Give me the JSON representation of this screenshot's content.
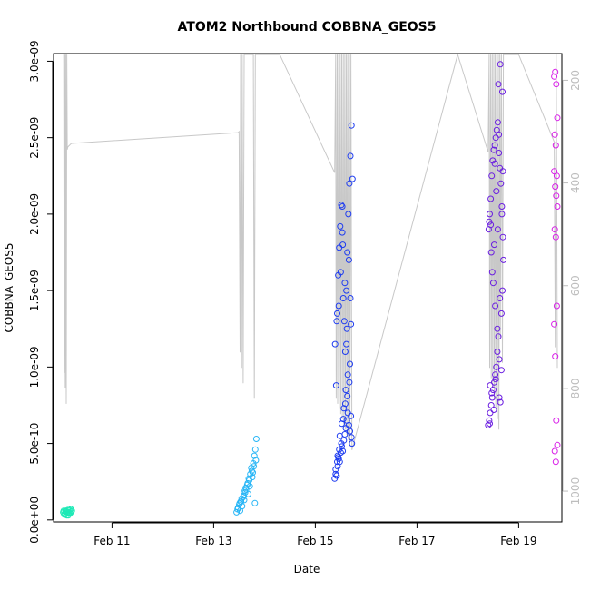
{
  "chart_data": {
    "type": "scatter",
    "title": "ATOM2 Northbound COBBNA_GEOS5",
    "xlabel": "Date",
    "ylabel": "COBBNA_GEOS5",
    "x_ticks": [
      "Feb 11",
      "Feb 13",
      "Feb 15",
      "Feb 17",
      "Feb 19"
    ],
    "y_ticks": [
      "0.0e+00",
      "5.0e-10",
      "1.0e-09",
      "1.5e-09",
      "2.0e-09",
      "2.5e-09",
      "3.0e-09"
    ],
    "y2_ticks": [
      "200",
      "400",
      "600",
      "800",
      "1000"
    ],
    "xlim": [
      9.85,
      19.85
    ],
    "ylim": [
      -1.3e-11,
      3.05e-09
    ],
    "y2lim": [
      1060,
      148
    ],
    "grid": false,
    "pressure_line_color": "#c8c8c8",
    "point_style": "open-circle",
    "series": [
      {
        "color": "#1de9b6",
        "x": [
          10.05,
          10.07,
          10.09,
          10.11,
          10.13,
          10.15,
          10.17,
          10.19,
          10.06,
          10.08,
          10.1,
          10.12,
          10.14,
          10.16,
          10.18,
          10.2,
          10.04,
          10.21
        ],
        "y": [
          6e-11,
          4e-11,
          5.5e-11,
          3e-11,
          6.5e-11,
          4.5e-11,
          5e-11,
          7e-11,
          3.5e-11,
          6e-11,
          4e-11,
          5e-11,
          3e-11,
          6.5e-11,
          4.5e-11,
          5.5e-11,
          5e-11,
          6e-11
        ]
      },
      {
        "color": "#29b6f6",
        "x": [
          13.45,
          13.48,
          13.5,
          13.52,
          13.54,
          13.56,
          13.58,
          13.6,
          13.62,
          13.64,
          13.66,
          13.68,
          13.7,
          13.72,
          13.74,
          13.76,
          13.78,
          13.8,
          13.82,
          13.84,
          13.47,
          13.51,
          13.55,
          13.59,
          13.63,
          13.67,
          13.71,
          13.75,
          13.79,
          13.83,
          13.53,
          13.61,
          13.69,
          13.77,
          13.81
        ],
        "y": [
          5e-11,
          8e-11,
          1e-10,
          6e-11,
          1.2e-10,
          9e-11,
          1.5e-10,
          1.3e-10,
          1.8e-10,
          2e-10,
          2.3e-10,
          1.7e-10,
          2.6e-10,
          3e-10,
          3.4e-10,
          2.8e-10,
          3.7e-10,
          4.2e-10,
          4.6e-10,
          5.3e-10,
          7e-11,
          1.1e-10,
          1.4e-10,
          1.6e-10,
          2.1e-10,
          2.4e-10,
          2.2e-10,
          3.2e-10,
          3.5e-10,
          3.9e-10,
          1.2e-10,
          1.9e-10,
          2.7e-10,
          3.1e-10,
          1.1e-10
        ]
      },
      {
        "color": "#1e3cf0",
        "x": [
          15.38,
          15.4,
          15.42,
          15.44,
          15.46,
          15.48,
          15.5,
          15.52,
          15.54,
          15.56,
          15.58,
          15.6,
          15.62,
          15.64,
          15.66,
          15.68,
          15.7,
          15.72,
          15.39,
          15.41,
          15.43,
          15.45,
          15.47,
          15.49,
          15.51,
          15.53,
          15.55,
          15.57,
          15.59,
          15.61,
          15.63,
          15.65,
          15.67,
          15.69,
          15.71,
          15.73,
          15.4,
          15.44,
          15.48,
          15.52,
          15.56,
          15.6,
          15.64,
          15.68,
          15.42,
          15.46,
          15.5,
          15.54,
          15.58,
          15.62,
          15.66,
          15.7,
          15.43,
          15.47,
          15.51,
          15.55,
          15.59,
          15.63,
          15.67,
          15.71,
          15.45,
          15.53,
          15.61,
          15.69
        ],
        "y": [
          2.7e-10,
          3e-10,
          2.9e-10,
          3.5e-10,
          4e-10,
          3.8e-10,
          4.4e-10,
          4.8e-10,
          4.5e-10,
          5.2e-10,
          5.6e-10,
          6e-10,
          6.5e-10,
          7e-10,
          6.2e-10,
          5.8e-10,
          6.8e-10,
          5e-10,
          1.15e-09,
          8.8e-10,
          1.35e-09,
          1.6e-09,
          1.78e-09,
          1.92e-09,
          2.06e-09,
          1.88e-09,
          1.45e-09,
          1.3e-09,
          1.1e-09,
          1.5e-09,
          1.75e-09,
          2e-09,
          2.2e-09,
          2.38e-09,
          2.58e-09,
          2.23e-09,
          3.3e-10,
          4.2e-10,
          5.5e-10,
          6.3e-10,
          7.3e-10,
          8.5e-10,
          9.5e-10,
          1.02e-09,
          1.3e-09,
          1.4e-09,
          1.62e-09,
          1.8e-09,
          1.55e-09,
          1.25e-09,
          1.7e-09,
          1.28e-09,
          3.8e-10,
          4.6e-10,
          5e-10,
          6.6e-10,
          7.6e-10,
          8.1e-10,
          9e-10,
          5.4e-10,
          4.1e-10,
          2.05e-09,
          1.15e-09,
          1.45e-09
        ]
      },
      {
        "color": "#6a1de0",
        "x": [
          18.4,
          18.42,
          18.44,
          18.46,
          18.48,
          18.5,
          18.52,
          18.54,
          18.56,
          18.58,
          18.6,
          18.62,
          18.64,
          18.66,
          18.68,
          18.7,
          18.41,
          18.43,
          18.45,
          18.47,
          18.49,
          18.51,
          18.53,
          18.55,
          18.57,
          18.59,
          18.61,
          18.63,
          18.65,
          18.67,
          18.69,
          18.42,
          18.46,
          18.5,
          18.54,
          18.58,
          18.62,
          18.66,
          18.44,
          18.48,
          18.52,
          18.56,
          18.6,
          18.64,
          18.68,
          18.45,
          18.53,
          18.61,
          18.69,
          18.43,
          18.51,
          18.59,
          18.67,
          18.47,
          18.55,
          18.63
        ],
        "y": [
          6.2e-10,
          6.5e-10,
          7e-10,
          7.5e-10,
          8e-10,
          8.5e-10,
          9e-10,
          9.5e-10,
          1e-09,
          1.1e-09,
          1.2e-09,
          8e-10,
          7.7e-10,
          1.35e-09,
          1.5e-09,
          1.7e-09,
          1.9e-09,
          2e-09,
          2.1e-09,
          2.25e-09,
          2.35e-09,
          2.42e-09,
          2.45e-09,
          2.5e-09,
          2.55e-09,
          2.6e-09,
          2.4e-09,
          2.3e-09,
          2.2e-09,
          2e-09,
          1.85e-09,
          1.95e-09,
          1.75e-09,
          1.55e-09,
          1.4e-09,
          1.25e-09,
          1.05e-09,
          9.8e-10,
          8.8e-10,
          1.62e-09,
          1.8e-09,
          2.15e-09,
          2.85e-09,
          2.98e-09,
          2.8e-09,
          1.93e-09,
          2.33e-09,
          2.52e-09,
          2.28e-09,
          6.3e-10,
          7.2e-10,
          1.9e-09,
          2.05e-09,
          8.3e-10,
          9.2e-10,
          1.45e-09
        ]
      },
      {
        "color": "#d81ee8",
        "x": [
          19.7,
          19.72,
          19.74,
          19.76,
          19.71,
          19.73,
          19.75,
          19.7,
          19.72,
          19.74,
          19.76,
          19.71,
          19.73,
          19.75,
          19.7,
          19.72,
          19.74,
          19.76,
          19.71,
          19.73
        ],
        "y": [
          2.9e-09,
          2.93e-09,
          2.85e-09,
          2.63e-09,
          2.52e-09,
          2.45e-09,
          2.25e-09,
          2.28e-09,
          2.18e-09,
          2.12e-09,
          2.05e-09,
          1.9e-09,
          1.85e-09,
          1.4e-09,
          1.28e-09,
          1.07e-09,
          6.5e-10,
          4.9e-10,
          4.5e-10,
          3.8e-10
        ]
      }
    ],
    "pressure_trace": {
      "x": [
        10.05,
        10.06,
        10.07,
        10.08,
        10.09,
        10.1,
        10.11,
        10.12,
        10.13,
        10.14,
        10.15,
        10.16,
        10.17,
        10.18,
        10.2,
        13.48,
        13.5,
        13.52,
        13.53,
        13.55,
        13.56,
        13.58,
        13.6,
        13.62,
        13.64,
        13.66,
        13.68,
        13.7,
        13.72,
        13.74,
        13.76,
        13.78,
        13.8,
        13.82,
        14.3,
        15.38,
        15.4,
        15.41,
        15.43,
        15.44,
        15.46,
        15.47,
        15.49,
        15.5,
        15.52,
        15.53,
        15.55,
        15.56,
        15.58,
        15.59,
        15.61,
        15.62,
        15.64,
        15.65,
        15.67,
        15.68,
        15.7,
        15.72,
        17.8,
        18.4,
        18.42,
        18.43,
        18.45,
        18.46,
        18.48,
        18.49,
        18.51,
        18.52,
        18.54,
        18.55,
        18.57,
        18.58,
        18.6,
        18.61,
        18.63,
        18.64,
        18.66,
        18.68,
        18.7,
        19.0,
        19.7,
        19.72,
        19.74,
        19.76
      ],
      "p": [
        150,
        770,
        150,
        800,
        150,
        830,
        150,
        335,
        330,
        329,
        328,
        327,
        326,
        325,
        323,
        302,
        300,
        730,
        150,
        760,
        150,
        790,
        150,
        150,
        150,
        150,
        150,
        150,
        150,
        150,
        150,
        150,
        820,
        150,
        150,
        380,
        150,
        820,
        150,
        830,
        150,
        840,
        150,
        850,
        150,
        860,
        150,
        870,
        150,
        880,
        150,
        890,
        150,
        900,
        150,
        910,
        150,
        920,
        150,
        340,
        150,
        760,
        150,
        780,
        150,
        800,
        150,
        820,
        150,
        840,
        150,
        860,
        150,
        880,
        150,
        700,
        150,
        750,
        150,
        150,
        320,
        720,
        150,
        760
      ]
    }
  }
}
